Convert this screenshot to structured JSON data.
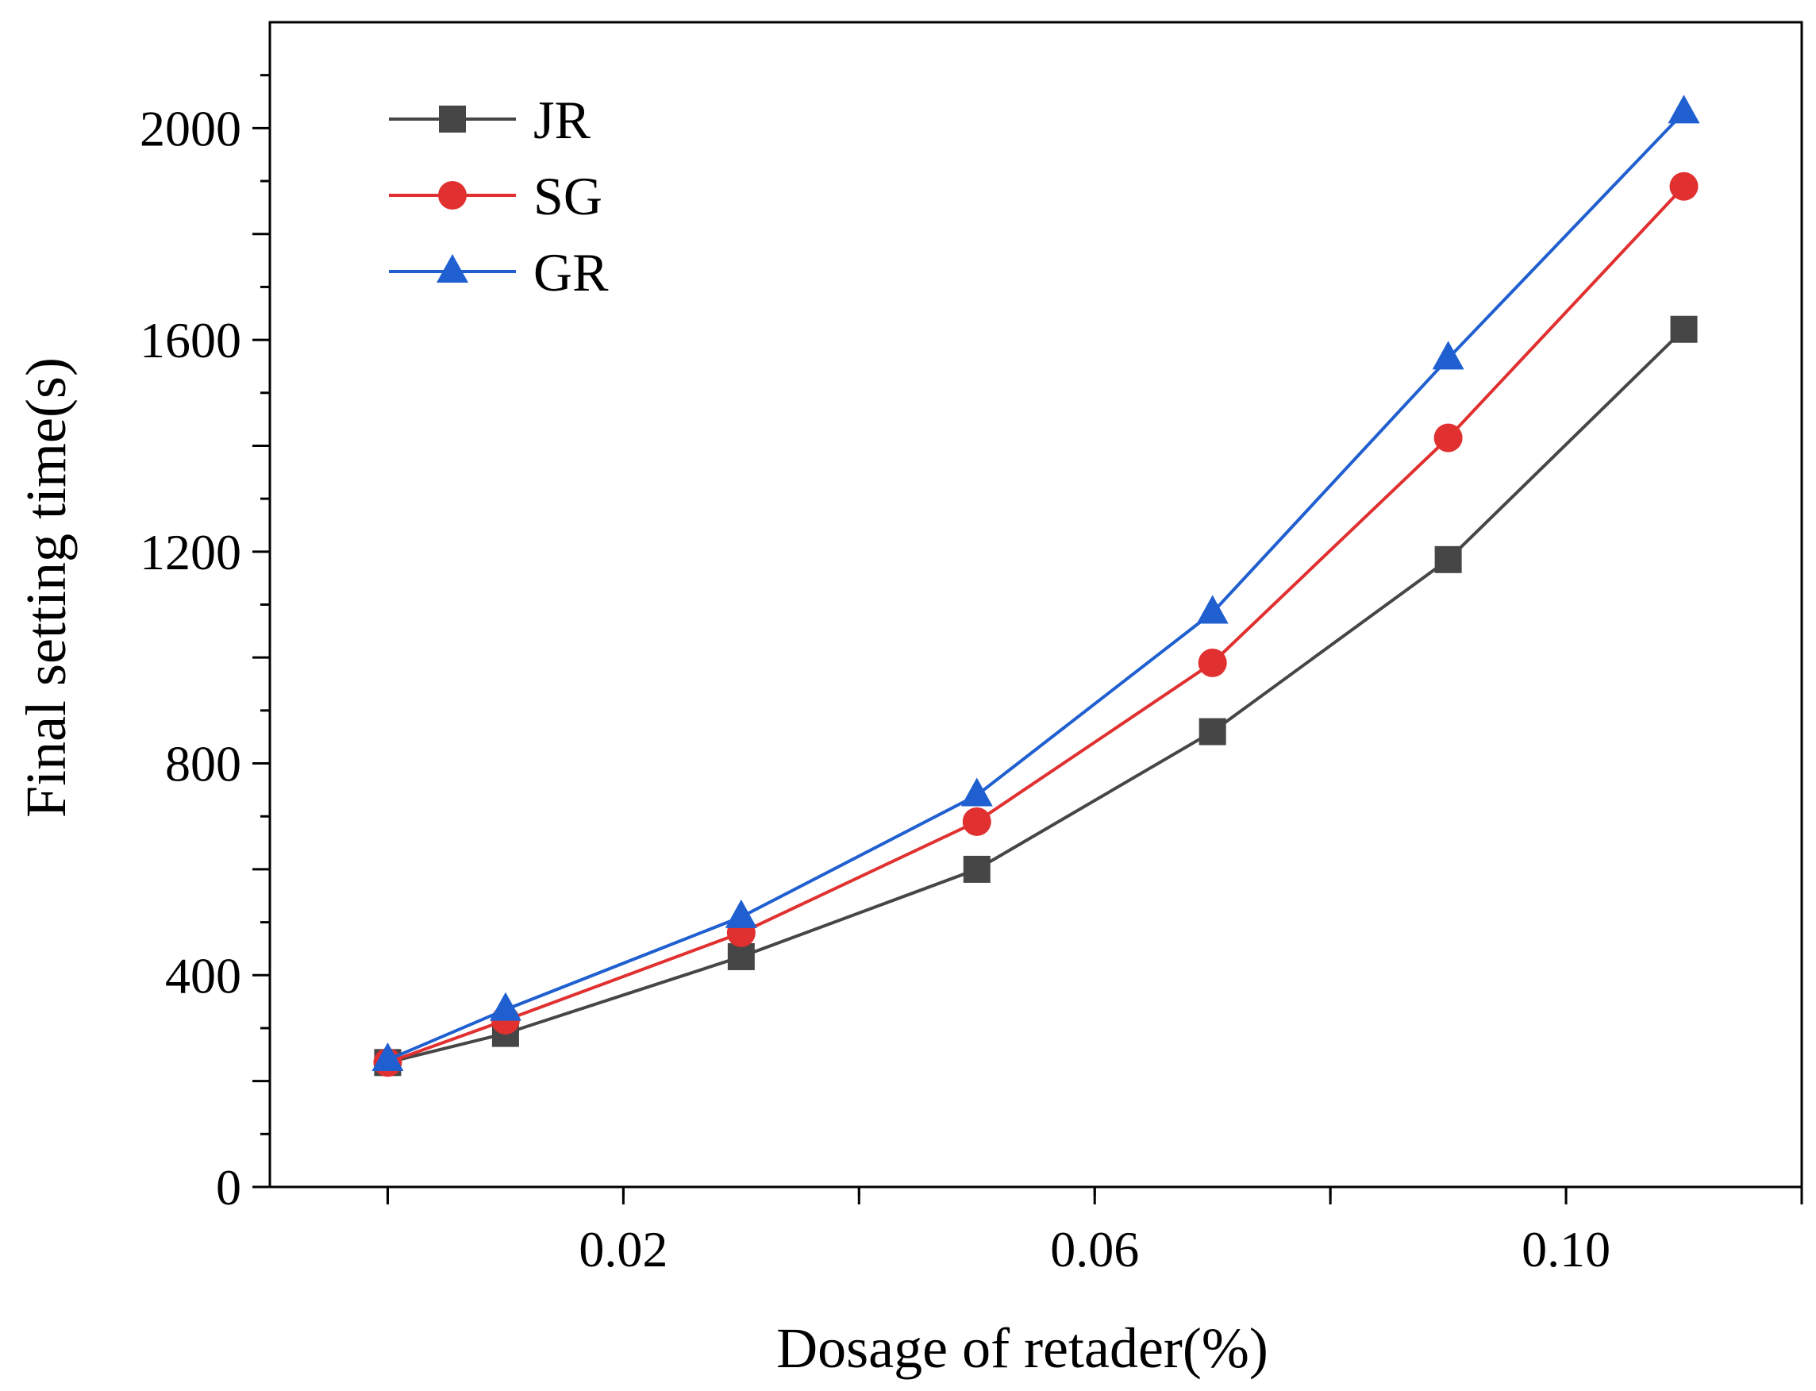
{
  "chart_data": {
    "type": "line",
    "title": "",
    "xlabel": "Dosage of retader(%)",
    "ylabel": "Final setting time(s)",
    "xlim": [
      -0.01,
      0.12
    ],
    "ylim": [
      0,
      2200
    ],
    "xticks_major": [
      0.0,
      0.02,
      0.04,
      0.06,
      0.08,
      0.1,
      0.12
    ],
    "xtick_labels": [
      {
        "value": 0.02,
        "label": "0.02"
      },
      {
        "value": 0.06,
        "label": "0.06"
      },
      {
        "value": 0.1,
        "label": "0.10"
      }
    ],
    "yticks_major": [
      0,
      200,
      400,
      600,
      800,
      1000,
      1200,
      1400,
      1600,
      1800,
      2000
    ],
    "ytick_labels": [
      {
        "value": 0,
        "label": "0"
      },
      {
        "value": 400,
        "label": "400"
      },
      {
        "value": 800,
        "label": "800"
      },
      {
        "value": 1200,
        "label": "1200"
      },
      {
        "value": 1600,
        "label": "1600"
      },
      {
        "value": 2000,
        "label": "2000"
      }
    ],
    "grid": false,
    "legend_position": "top-left",
    "x": [
      0.0,
      0.01,
      0.03,
      0.05,
      0.07,
      0.09,
      0.11
    ],
    "series": [
      {
        "name": "JR",
        "color": "#464646",
        "marker": "square",
        "values": [
          235,
          290,
          435,
          600,
          860,
          1185,
          1620
        ]
      },
      {
        "name": "SG",
        "color": "#e03030",
        "marker": "circle",
        "values": [
          235,
          315,
          480,
          690,
          990,
          1415,
          1890
        ]
      },
      {
        "name": "GR",
        "color": "#1f5fd0",
        "marker": "triangle",
        "values": [
          240,
          335,
          510,
          740,
          1085,
          1565,
          2030
        ]
      }
    ]
  }
}
